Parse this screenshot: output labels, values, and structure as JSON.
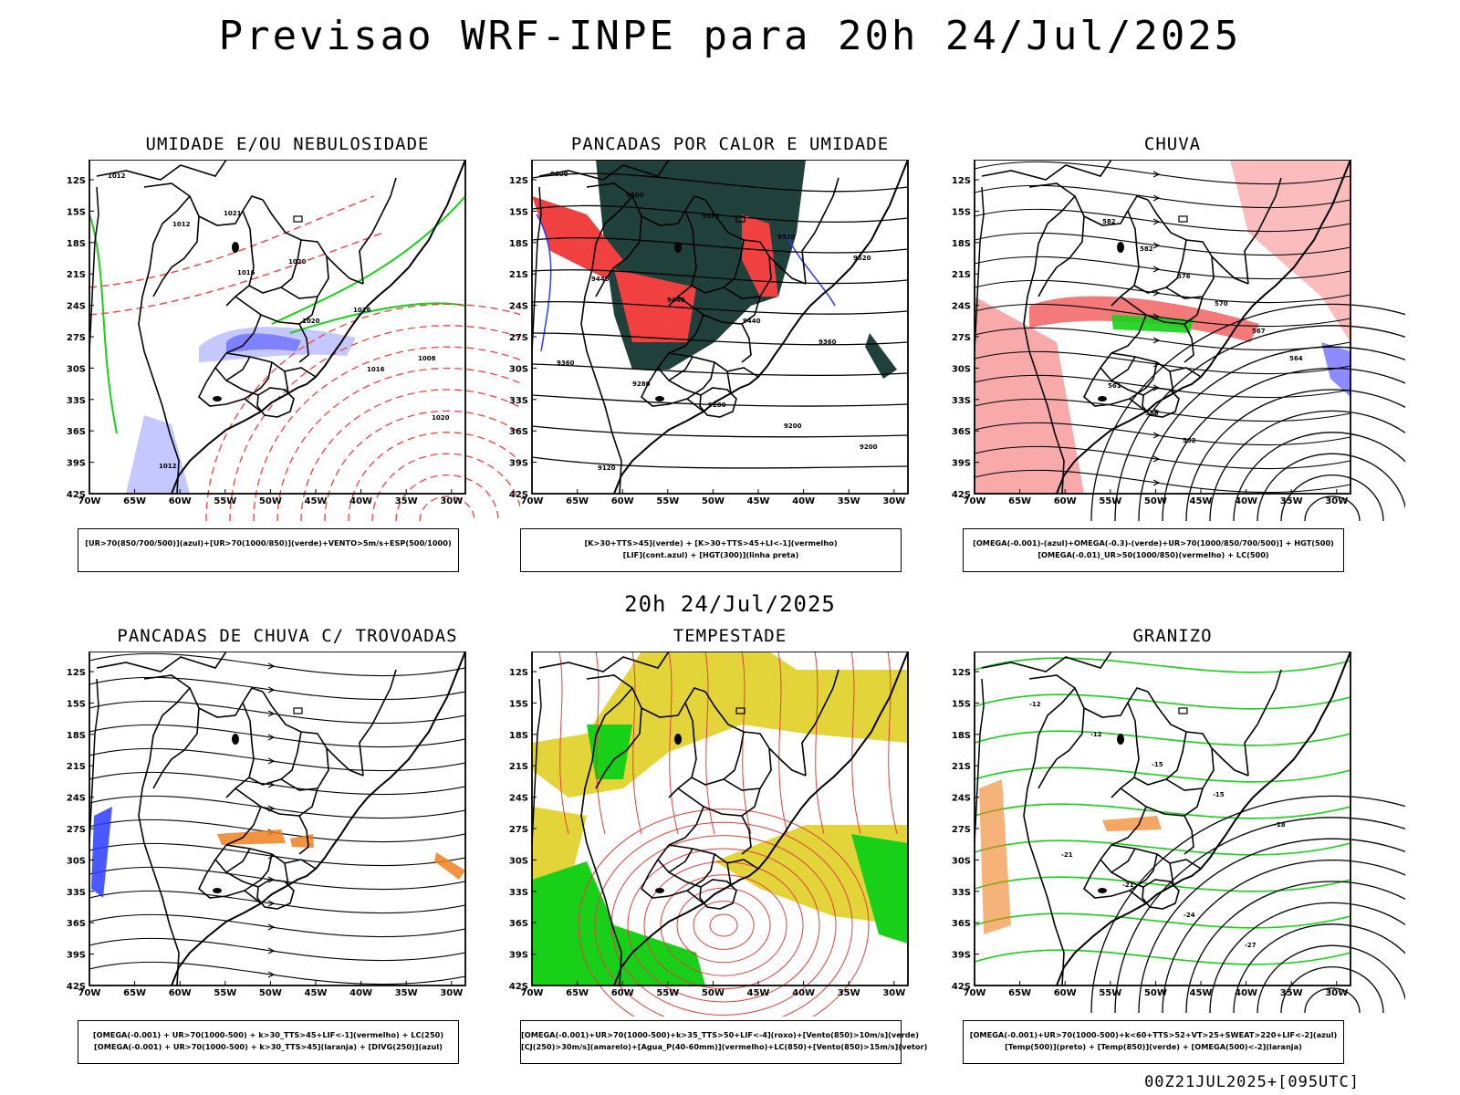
{
  "title": "Previsao WRF-INPE  para 20h 24/Jul/2025",
  "subtitle": "20h 24/Jul/2025",
  "footer": "00Z21JUL2025+[095UTC]",
  "axes": {
    "lat_labels": [
      "12S",
      "15S",
      "18S",
      "21S",
      "24S",
      "27S",
      "30S",
      "33S",
      "36S",
      "39S",
      "42S"
    ],
    "lon_labels": [
      "70W",
      "65W",
      "60W",
      "55W",
      "50W",
      "45W",
      "40W",
      "35W",
      "30W"
    ]
  },
  "colors": {
    "blue": "#6f6fff",
    "green": "#18d018",
    "red": "#f04040",
    "dark": "#20403c",
    "yellow": "#e3d43a",
    "orange": "#f08020",
    "lightpurple": "#c4c8ff"
  },
  "panels": [
    {
      "id": "umidade",
      "title": "UMIDADE E/OU NEBULOSIDADE",
      "legend": [
        "[UR>70(850/700/500)](azul)+[UR>70(1000/850)](verde)+VENTO>5m/s+ESP(500/1000)"
      ],
      "contour_labels": [
        "1012",
        "1012",
        "1016",
        "1020",
        "1016",
        "1020",
        "1012",
        "1021",
        "1020",
        "1016",
        "1008"
      ]
    },
    {
      "id": "pancadas",
      "title": "PANCADAS POR CALOR E UMIDADE",
      "legend": [
        "[K>30+TTS>45](verde) + [K>30+TTS>45+LI<-1](vermelho)",
        "[LIF](cont.azul) + [HGT(300)](linha preta)"
      ],
      "contour_labels": [
        "9600",
        "9600",
        "9520",
        "9520",
        "9520",
        "9440",
        "9440",
        "9440",
        "9360",
        "9360",
        "9280",
        "9280",
        "9200",
        "9200",
        "9120"
      ]
    },
    {
      "id": "chuva",
      "title": "CHUVA",
      "legend": [
        "[OMEGA(-0.001)-(azul)+OMEGA(-0.3)-(verde)+UR>70(1000/850/700/500)] + HGT(500)",
        "[OMEGA(-0.01)_UR>50(1000/850)(vermelho) + LC(500)"
      ],
      "contour_labels": [
        "582",
        "582",
        "576",
        "570",
        "567",
        "564",
        "561",
        "558",
        "552"
      ]
    },
    {
      "id": "trovoadas",
      "title": "PANCADAS DE CHUVA C/ TROVOADAS",
      "legend": [
        "[OMEGA(-0.001) + UR>70(1000-500) + k>30_TTS>45+LIF<-1](vermelho) + LC(250)",
        "[OMEGA(-0.001) + UR>70(1000-500) + k>30_TTS>45](laranja) + [DIVG(250)](azul)"
      ],
      "contour_labels": []
    },
    {
      "id": "tempestade",
      "title": "TEMPESTADE",
      "legend": [
        "[OMEGA(-0.001)+UR>70(1000-500)+k>35_TTS>50+LIF<-4](roxo)+[Vento(850)>10m/s](verde)",
        "[CJ(250)>30m/s](amarelo)+[Agua_P(40-60mm)](vermelho)+LC(850)+[Vento(850)>15m/s](vetor)"
      ],
      "contour_labels": []
    },
    {
      "id": "granizo",
      "title": "GRANIZO",
      "legend": [
        "[OMEGA(-0.001)+UR>70(1000-500)+k<60+TTS>52+VT>25+SWEAT>220+LIF<-2](azul)",
        "[Temp(500)](preto) + [Temp(850)](verde) + [OMEGA(500)<-2](laranja)"
      ],
      "contour_labels": [
        "-12",
        "-12",
        "-15",
        "-15",
        "-18",
        "-21",
        "-21",
        "-24",
        "-27"
      ]
    }
  ]
}
